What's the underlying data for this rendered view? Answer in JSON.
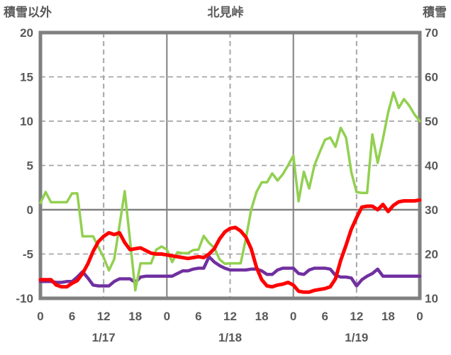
{
  "header": {
    "left_axis_title": "積雪以外",
    "title": "北見峠",
    "right_axis_title": "積雪"
  },
  "colors": {
    "background": "#ffffff",
    "axis_border": "#808080",
    "gridline": "#a6a6a6",
    "text": "#595959",
    "green_line": "#92d050",
    "red_line": "#ff0000",
    "purple_line": "#7030a0"
  },
  "chart_data": {
    "type": "line",
    "title": "北見峠",
    "legend": "none",
    "x_axis": {
      "unit": "hour",
      "span_hours": 72,
      "tick_hours": [
        0,
        6,
        12,
        18,
        24,
        30,
        36,
        42,
        48,
        54,
        60,
        66,
        72
      ],
      "tick_labels": [
        "0",
        "6",
        "12",
        "18",
        "0",
        "6",
        "12",
        "18",
        "0",
        "6",
        "12",
        "18",
        "0"
      ],
      "day_labels": [
        {
          "label": "1/17",
          "center_hour": 12
        },
        {
          "label": "1/18",
          "center_hour": 36
        },
        {
          "label": "1/19",
          "center_hour": 60
        }
      ],
      "solid_gridline_hours": [
        24,
        48
      ],
      "dashed_gridline_hours": [
        12,
        36,
        60
      ]
    },
    "left_axis": {
      "title": "積雪以外",
      "min": -10,
      "max": 20,
      "tick_labels": [
        "20",
        "15",
        "10",
        "5",
        "0",
        "-5",
        "-10"
      ],
      "tick_values": [
        20,
        15,
        10,
        5,
        0,
        -5,
        -10
      ],
      "dashed_grid_values": [
        15,
        10,
        5,
        -5
      ],
      "solid_zero_line_value": 0
    },
    "right_axis": {
      "title": "積雪",
      "min": 10,
      "max": 70,
      "tick_labels": [
        "70",
        "60",
        "50",
        "40",
        "30",
        "20",
        "10"
      ],
      "tick_values": [
        70,
        60,
        50,
        40,
        30,
        20,
        10
      ]
    },
    "series": [
      {
        "id": "purple-line",
        "axis": "left",
        "color": "#7030a0",
        "stroke_width": 4.5,
        "values": [
          -8.1,
          -8.1,
          -8.1,
          -8.2,
          -8.2,
          -8.1,
          -8.1,
          -7.6,
          -7.0,
          -7.7,
          -8.5,
          -8.6,
          -8.6,
          -8.6,
          -8.1,
          -7.8,
          -7.8,
          -7.8,
          -8.2,
          -7.6,
          -7.5,
          -7.5,
          -7.5,
          -7.5,
          -7.5,
          -7.5,
          -7.2,
          -6.9,
          -6.9,
          -6.7,
          -6.6,
          -6.6,
          -5.3,
          -5.9,
          -6.3,
          -6.6,
          -6.8,
          -6.8,
          -6.8,
          -6.8,
          -6.7,
          -6.7,
          -6.9,
          -7.3,
          -7.3,
          -6.8,
          -6.6,
          -6.6,
          -6.6,
          -7.2,
          -7.3,
          -6.8,
          -6.6,
          -6.6,
          -6.6,
          -6.7,
          -7.4,
          -7.6,
          -7.6,
          -7.7,
          -8.6,
          -7.9,
          -7.5,
          -7.2,
          -6.7,
          -7.5,
          -7.5,
          -7.5,
          -7.5,
          -7.5,
          -7.5,
          -7.5,
          -7.5
        ]
      },
      {
        "id": "green-snow-depth",
        "axis": "right",
        "color": "#92d050",
        "stroke_width": 3.5,
        "values": [
          31.5,
          34,
          31.7,
          31.7,
          31.7,
          31.7,
          33.7,
          33.7,
          24,
          24,
          24,
          21.6,
          19.2,
          16.3,
          18.8,
          26.4,
          34.2,
          23.2,
          11.8,
          17.9,
          17.9,
          17.9,
          21,
          21.7,
          21,
          18.2,
          20.4,
          20.2,
          20.2,
          20.9,
          21,
          24.1,
          22.5,
          21.4,
          18.8,
          17.8,
          17.9,
          17.9,
          17.9,
          23.5,
          30,
          34,
          36.2,
          36.2,
          38.2,
          36.6,
          38,
          40,
          42.2,
          31.9,
          38.6,
          34.8,
          40,
          43,
          45.8,
          46.3,
          44.2,
          48.5,
          46.3,
          38.5,
          34,
          33.8,
          33.8,
          47,
          40.6,
          46,
          52,
          56.5,
          53,
          55,
          53.5,
          51.5,
          50
        ]
      },
      {
        "id": "red-line",
        "axis": "left",
        "color": "#ff0000",
        "stroke_width": 5,
        "values": [
          -7.9,
          -7.9,
          -7.9,
          -8.5,
          -8.7,
          -8.7,
          -8.3,
          -8.0,
          -7.2,
          -6.1,
          -4.7,
          -3.6,
          -3.0,
          -2.6,
          -2.8,
          -2.6,
          -3.7,
          -4.5,
          -4.4,
          -4.3,
          -4.6,
          -4.9,
          -5.0,
          -5.0,
          -5.1,
          -5.2,
          -5.3,
          -5.4,
          -5.5,
          -5.4,
          -5.3,
          -5.4,
          -5.0,
          -4.4,
          -3.3,
          -2.5,
          -2.1,
          -2.0,
          -2.4,
          -3.1,
          -4.4,
          -6.5,
          -7.9,
          -8.6,
          -8.7,
          -8.5,
          -8.4,
          -8.2,
          -8.5,
          -9.2,
          -9.3,
          -9.3,
          -9.1,
          -9.0,
          -8.9,
          -8.7,
          -7.8,
          -5.7,
          -4.0,
          -2.2,
          -0.9,
          0.3,
          0.4,
          0.4,
          0.0,
          0.6,
          -0.2,
          0.5,
          0.9,
          1.0,
          1.0,
          1.0,
          1.1
        ]
      }
    ]
  }
}
